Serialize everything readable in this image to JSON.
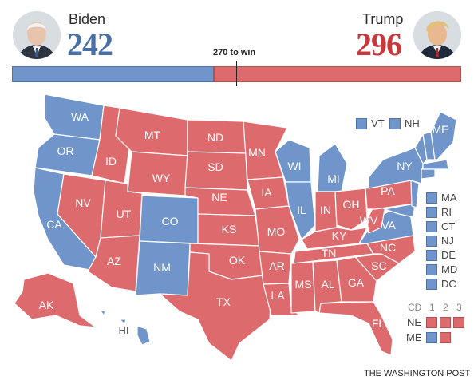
{
  "header": {
    "left": {
      "name": "Biden",
      "votes": "242",
      "color": "#4a6fa5",
      "avatar": "biden-portrait"
    },
    "right": {
      "name": "Trump",
      "votes": "296",
      "color": "#c8393c",
      "avatar": "trump-portrait"
    },
    "threshold_label": "270 to win"
  },
  "bar": {
    "dem_electoral_votes": 242,
    "rep_electoral_votes": 296,
    "total": 538,
    "threshold": 270
  },
  "colors": {
    "dem": "#6f95cb",
    "rep": "#dd6a6d"
  },
  "states": {
    "WA": "WA",
    "OR": "OR",
    "CA": "CA",
    "ID": "ID",
    "NV": "NV",
    "MT": "MT",
    "WY": "WY",
    "UT": "UT",
    "AZ": "AZ",
    "CO": "CO",
    "NM": "NM",
    "ND": "ND",
    "SD": "SD",
    "NE": "NE",
    "KS": "KS",
    "OK": "OK",
    "TX": "TX",
    "MN": "MN",
    "IA": "IA",
    "MO": "MO",
    "AR": "AR",
    "LA": "LA",
    "WI": "WI",
    "IL": "IL",
    "MS": "MS",
    "MI": "MI",
    "IN": "IN",
    "KY": "KY",
    "TN": "TN",
    "AL": "AL",
    "OH": "OH",
    "GA": "GA",
    "FL": "FL",
    "SC": "SC",
    "NC": "NC",
    "VA": "VA",
    "WV": "WV",
    "PA": "PA",
    "NY": "NY",
    "ME": "ME",
    "AK": "AK",
    "HI": "HI"
  },
  "winners": {
    "WA": "dem",
    "OR": "dem",
    "CA": "dem",
    "CO": "dem",
    "NM": "dem",
    "MN": "rep",
    "WI": "dem",
    "IL": "dem",
    "MI": "dem",
    "VA": "dem",
    "NY": "dem",
    "ME": "dem",
    "HI": "dem",
    "VT": "dem",
    "NH": "dem",
    "MA": "dem",
    "RI": "dem",
    "CT": "dem",
    "NJ": "dem",
    "DE": "dem",
    "MD": "dem",
    "DC": "dem",
    "ID": "rep",
    "NV": "rep",
    "MT": "rep",
    "WY": "rep",
    "UT": "rep",
    "AZ": "rep",
    "ND": "rep",
    "SD": "rep",
    "NE": "rep",
    "KS": "rep",
    "OK": "rep",
    "TX": "rep",
    "IA": "rep",
    "MO": "rep",
    "AR": "rep",
    "LA": "rep",
    "MS": "rep",
    "IN": "rep",
    "KY": "rep",
    "TN": "rep",
    "AL": "rep",
    "OH": "rep",
    "GA": "rep",
    "FL": "rep",
    "SC": "rep",
    "NC": "rep",
    "WV": "rep",
    "PA": "rep",
    "AK": "rep"
  },
  "small_states_top": [
    "VT",
    "NH"
  ],
  "small_states_right": [
    "MA",
    "RI",
    "CT",
    "NJ",
    "DE",
    "MD",
    "DC"
  ],
  "districts": {
    "header": [
      "CD",
      "1",
      "2",
      "3"
    ],
    "rows": [
      {
        "state": "NE",
        "results": [
          "rep",
          "rep",
          "rep"
        ]
      },
      {
        "state": "ME",
        "results": [
          "dem",
          "rep"
        ]
      }
    ]
  },
  "source": "THE WASHINGTON POST"
}
